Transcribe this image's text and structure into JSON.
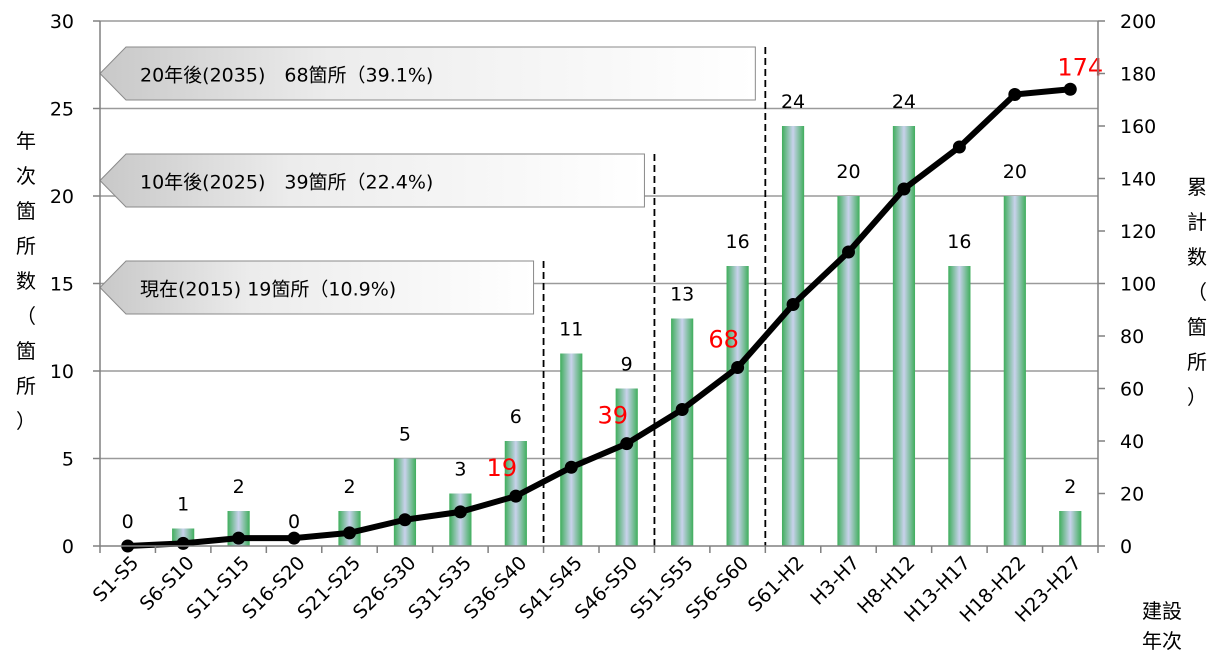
{
  "chart_data": {
    "type": "bar",
    "categories": [
      "S1-S5",
      "S6-S10",
      "S11-S15",
      "S16-S20",
      "S21-S25",
      "S26-S30",
      "S31-S35",
      "S36-S40",
      "S41-S45",
      "S46-S50",
      "S51-S55",
      "S56-S60",
      "S61-H2",
      "H3-H7",
      "H8-H12",
      "H13-H17",
      "H18-H22",
      "H23-H27"
    ],
    "series": [
      {
        "type": "bar",
        "axis": "left",
        "values": [
          0,
          1,
          2,
          0,
          2,
          5,
          3,
          6,
          11,
          9,
          13,
          16,
          24,
          20,
          24,
          16,
          20,
          2
        ]
      },
      {
        "type": "line",
        "axis": "right",
        "values": [
          0,
          1,
          3,
          3,
          5,
          10,
          13,
          19,
          30,
          39,
          52,
          68,
          92,
          112,
          136,
          152,
          172,
          174
        ]
      }
    ],
    "ylabel": "年次箇所数（箇所）",
    "ylabel_chars": [
      "年",
      "次",
      "箇",
      "所",
      "数",
      "（",
      "箇",
      "所",
      "）"
    ],
    "y2label": "累計数（箇所）",
    "y2label_chars": [
      "累",
      "計",
      "数",
      "（",
      "箇",
      "所",
      "）"
    ],
    "xlabel": "建設年次",
    "xlabel_lines": [
      "建設",
      "年次"
    ],
    "ylim": [
      0,
      30
    ],
    "y_ticks": [
      0,
      5,
      10,
      15,
      20,
      25,
      30
    ],
    "y2lim": [
      0,
      200
    ],
    "y2_ticks": [
      0,
      20,
      40,
      60,
      80,
      100,
      120,
      140,
      160,
      180,
      200
    ],
    "grid": true,
    "cumulative_labels": [
      {
        "category": "S36-S40",
        "text": "19"
      },
      {
        "category": "S46-S50",
        "text": "39"
      },
      {
        "category": "S56-S60",
        "text": "68"
      },
      {
        "category": "H23-H27",
        "text": "174"
      }
    ],
    "annotations": [
      {
        "text": "20年後(2035)　68箇所（39.1%)",
        "boundary_after": "S56-S60"
      },
      {
        "text": "10年後(2025)　39箇所（22.4%)",
        "boundary_after": "S46-S50"
      },
      {
        "text": "現在(2015) 19箇所（10.9%)",
        "boundary_after": "S36-S40"
      }
    ],
    "colors": {
      "bar_edge": "#3fae5c",
      "bar_center": "#c9d2ec",
      "line": "#000000",
      "cumulative_label": "#ff0000",
      "grid": "#9a9a9a"
    }
  }
}
